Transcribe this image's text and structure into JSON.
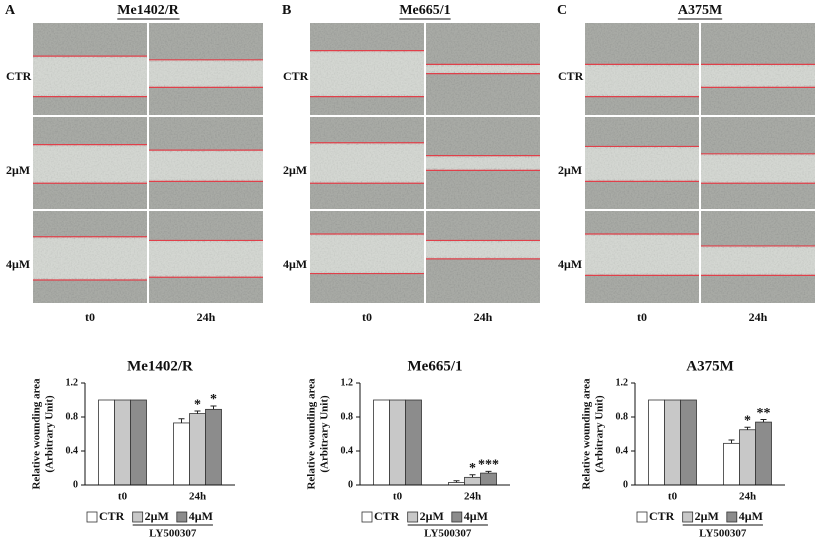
{
  "panels": [
    {
      "letter": "A",
      "title": "Me1402/R"
    },
    {
      "letter": "B",
      "title": "Me665/1"
    },
    {
      "letter": "C",
      "title": "A375M"
    }
  ],
  "rows": [
    "CTR",
    "2μM",
    "4μM"
  ],
  "columns": [
    "t0",
    "24h"
  ],
  "chart_data": [
    {
      "type": "bar",
      "title": "Me1402/R",
      "categories": [
        "t0",
        "24h"
      ],
      "series": [
        {
          "name": "CTR",
          "color": "#ffffff",
          "values": [
            1,
            0.73
          ],
          "errors": [
            null,
            0.05
          ]
        },
        {
          "name": "2μM",
          "color": "#c8c8c8",
          "values": [
            1,
            0.84
          ],
          "errors": [
            null,
            0.03
          ]
        },
        {
          "name": "4μM",
          "color": "#8c8c8c",
          "values": [
            1,
            0.89
          ],
          "errors": [
            null,
            0.04
          ]
        }
      ],
      "ylim": [
        0,
        1.2
      ],
      "yticks": [
        0,
        0.4,
        0.8,
        1.2
      ],
      "ylabel": [
        "Relative wounding area",
        "(Arbitrary Unit)"
      ],
      "xlabel": "LY500307",
      "legend": "bottom",
      "annotations": [
        {
          "series": "2μM",
          "category": "24h",
          "text": "*"
        },
        {
          "series": "4μM",
          "category": "24h",
          "text": "*"
        }
      ]
    },
    {
      "type": "bar",
      "title": "Me665/1",
      "categories": [
        "t0",
        "24h"
      ],
      "series": [
        {
          "name": "CTR",
          "color": "#ffffff",
          "values": [
            1,
            0.03
          ],
          "errors": [
            null,
            0.02
          ]
        },
        {
          "name": "2μM",
          "color": "#c8c8c8",
          "values": [
            1,
            0.09
          ],
          "errors": [
            null,
            0.03
          ]
        },
        {
          "name": "4μM",
          "color": "#8c8c8c",
          "values": [
            1,
            0.14
          ],
          "errors": [
            null,
            0.02
          ]
        }
      ],
      "ylim": [
        0,
        1.2
      ],
      "yticks": [
        0,
        0.4,
        0.8,
        1.2
      ],
      "ylabel": [
        "Relative wounding area",
        "(Arbitrary Unit)"
      ],
      "xlabel": "LY500307",
      "legend": "bottom",
      "annotations": [
        {
          "series": "2μM",
          "category": "24h",
          "text": "*"
        },
        {
          "series": "4μM",
          "category": "24h",
          "text": "***"
        }
      ]
    },
    {
      "type": "bar",
      "title": "A375M",
      "categories": [
        "t0",
        "24h"
      ],
      "series": [
        {
          "name": "CTR",
          "color": "#ffffff",
          "values": [
            1,
            0.49
          ],
          "errors": [
            null,
            0.04
          ]
        },
        {
          "name": "2μM",
          "color": "#c8c8c8",
          "values": [
            1,
            0.65
          ],
          "errors": [
            null,
            0.03
          ]
        },
        {
          "name": "4μM",
          "color": "#8c8c8c",
          "values": [
            1,
            0.74
          ],
          "errors": [
            null,
            0.03
          ]
        }
      ],
      "ylim": [
        0,
        1.2
      ],
      "yticks": [
        0,
        0.4,
        0.8,
        1.2
      ],
      "ylabel": [
        "Relative wounding area",
        "(Arbitrary Unit)"
      ],
      "xlabel": "LY500307",
      "legend": "bottom",
      "annotations": [
        {
          "series": "2μM",
          "category": "24h",
          "text": "*"
        },
        {
          "series": "4μM",
          "category": "24h",
          "text": "**"
        }
      ]
    }
  ]
}
